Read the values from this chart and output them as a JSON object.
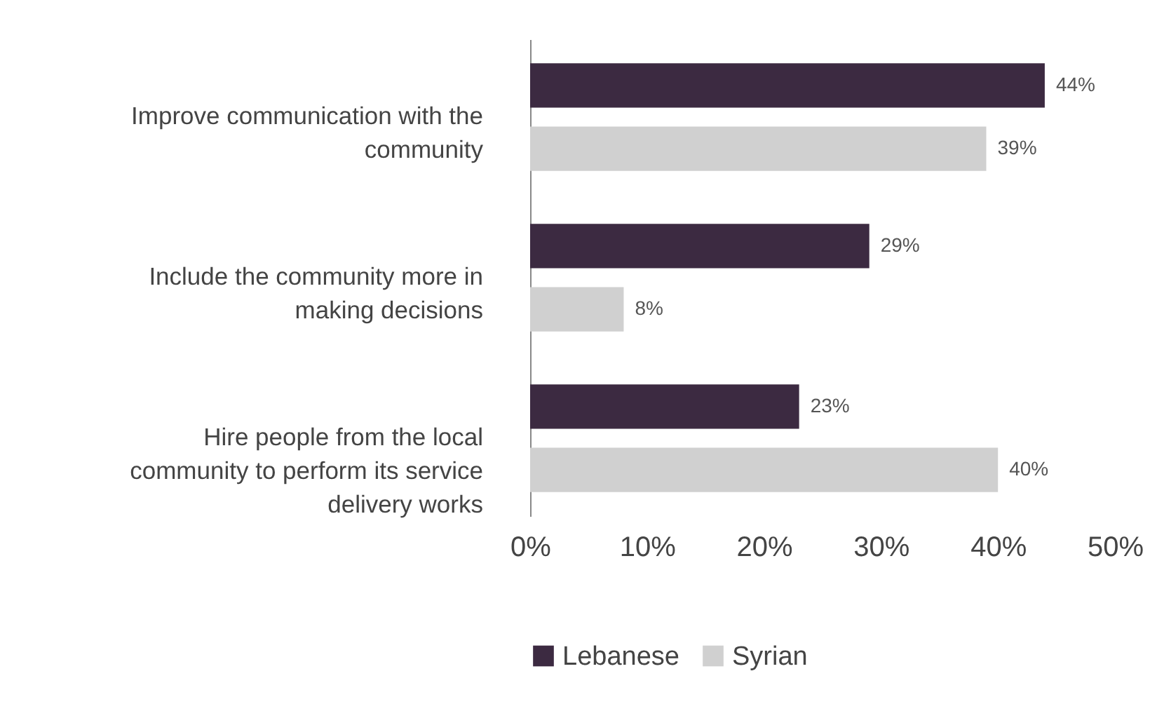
{
  "chart_data": {
    "type": "bar",
    "orientation": "horizontal",
    "categories": [
      "Improve communication with the community",
      "Include the community more in making decisions",
      "Hire people from the local community to perform its service delivery works"
    ],
    "series": [
      {
        "name": "Lebanese",
        "color": "#3c2a41",
        "values": [
          44,
          29,
          23
        ],
        "value_labels": [
          "44%",
          "29%",
          "23%"
        ]
      },
      {
        "name": "Syrian",
        "color": "#d0d0d0",
        "values": [
          39,
          8,
          40
        ],
        "value_labels": [
          "39%",
          "8%",
          "40%"
        ]
      }
    ],
    "xlim": [
      0,
      50
    ],
    "xticks": [
      {
        "value": 0,
        "label": "0%"
      },
      {
        "value": 10,
        "label": "10%"
      },
      {
        "value": 20,
        "label": "20%"
      },
      {
        "value": 30,
        "label": "30%"
      },
      {
        "value": 40,
        "label": "40%"
      },
      {
        "value": 50,
        "label": "50%"
      }
    ],
    "grid": false,
    "legend": "bottom"
  }
}
